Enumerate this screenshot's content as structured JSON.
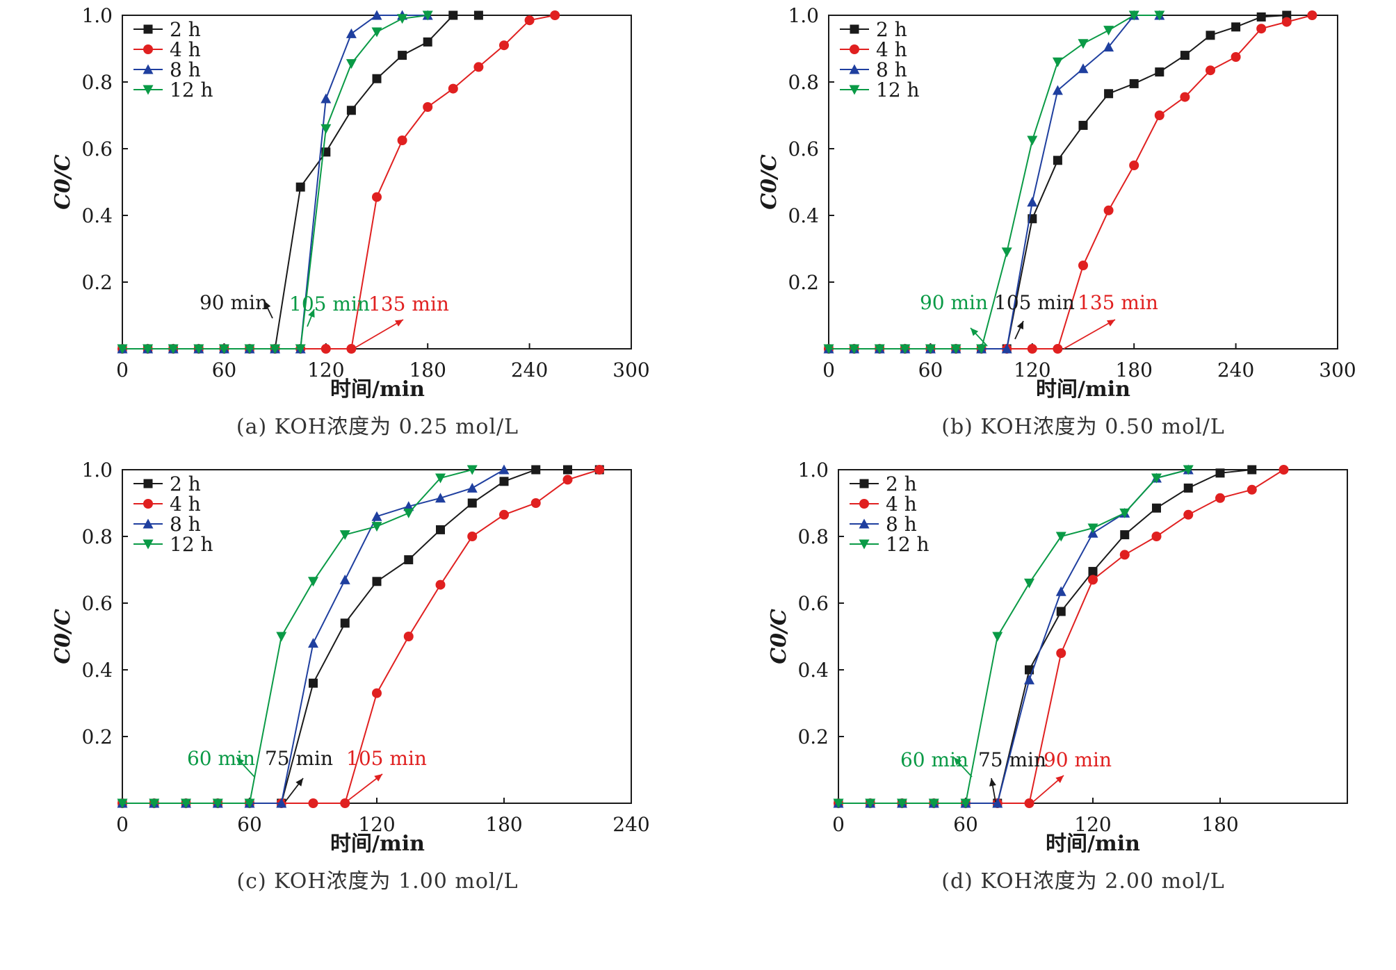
{
  "chart_data": [
    {
      "type": "line",
      "caption": "(a) KOH浓度为 0.25 mol/L",
      "xlabel": "时间/min",
      "ylabel": "C0/C",
      "xlim": [
        0,
        300
      ],
      "ylim": [
        0,
        1.0
      ],
      "xticks": [
        "0",
        "60",
        "120",
        "180",
        "240",
        "300"
      ],
      "yticks": [
        "0.2",
        "0.4",
        "0.6",
        "0.8",
        "1.0"
      ],
      "legend_position": "top-left",
      "series": [
        {
          "name": "2 h",
          "color": "#1a1a1a",
          "marker": "square",
          "x": [
            0,
            15,
            30,
            45,
            60,
            75,
            90,
            105,
            120,
            135,
            150,
            165,
            180,
            195,
            210
          ],
          "y": [
            0,
            0,
            0,
            0,
            0,
            0,
            0,
            0.485,
            0.59,
            0.715,
            0.81,
            0.88,
            0.92,
            1.0,
            1.0
          ]
        },
        {
          "name": "4 h",
          "color": "#e02020",
          "marker": "circle",
          "x": [
            0,
            15,
            30,
            45,
            60,
            75,
            90,
            105,
            120,
            135,
            150,
            165,
            180,
            195,
            210,
            225,
            240,
            255
          ],
          "y": [
            0,
            0,
            0,
            0,
            0,
            0,
            0,
            0,
            0,
            0,
            0.455,
            0.625,
            0.725,
            0.78,
            0.845,
            0.91,
            0.985,
            1.0
          ]
        },
        {
          "name": "8 h",
          "color": "#1f3f9f",
          "marker": "triangle-up",
          "x": [
            0,
            15,
            30,
            45,
            60,
            75,
            90,
            105,
            120,
            135,
            150,
            165,
            180
          ],
          "y": [
            0,
            0,
            0,
            0,
            0,
            0,
            0,
            0,
            0.75,
            0.945,
            1.0,
            1.0,
            1.0
          ]
        },
        {
          "name": "12 h",
          "color": "#0a9a46",
          "marker": "triangle-down",
          "x": [
            0,
            15,
            30,
            45,
            60,
            75,
            90,
            105,
            120,
            135,
            150,
            165,
            180
          ],
          "y": [
            0,
            0,
            0,
            0,
            0,
            0,
            0,
            0,
            0.66,
            0.855,
            0.95,
            0.99,
            1.0
          ]
        }
      ],
      "annotations": [
        {
          "text": "90 min",
          "color": "#1a1a1a",
          "x": 90
        },
        {
          "text": "105 min",
          "color": "#0a9a46",
          "x": 105
        },
        {
          "text": "135 min",
          "color": "#e02020",
          "x": 135
        }
      ]
    },
    {
      "type": "line",
      "caption": "(b) KOH浓度为 0.50 mol/L",
      "xlabel": "时间/min",
      "ylabel": "C0/C",
      "xlim": [
        0,
        300
      ],
      "ylim": [
        0,
        1.0
      ],
      "xticks": [
        "0",
        "60",
        "120",
        "180",
        "240",
        "300"
      ],
      "yticks": [
        "0.2",
        "0.4",
        "0.6",
        "0.8",
        "1.0"
      ],
      "legend_position": "top-left",
      "series": [
        {
          "name": "2 h",
          "color": "#1a1a1a",
          "marker": "square",
          "x": [
            0,
            15,
            30,
            45,
            60,
            75,
            90,
            105,
            120,
            135,
            150,
            165,
            180,
            195,
            210,
            225,
            240,
            255,
            270
          ],
          "y": [
            0,
            0,
            0,
            0,
            0,
            0,
            0,
            0,
            0.39,
            0.565,
            0.67,
            0.765,
            0.795,
            0.83,
            0.88,
            0.94,
            0.965,
            0.995,
            1.0
          ]
        },
        {
          "name": "4 h",
          "color": "#e02020",
          "marker": "circle",
          "x": [
            0,
            15,
            30,
            45,
            60,
            75,
            90,
            105,
            120,
            135,
            150,
            165,
            180,
            195,
            210,
            225,
            240,
            255,
            270,
            285
          ],
          "y": [
            0,
            0,
            0,
            0,
            0,
            0,
            0,
            0,
            0,
            0,
            0.25,
            0.415,
            0.55,
            0.7,
            0.755,
            0.835,
            0.875,
            0.96,
            0.98,
            1.0
          ]
        },
        {
          "name": "8 h",
          "color": "#1f3f9f",
          "marker": "triangle-up",
          "x": [
            0,
            15,
            30,
            45,
            60,
            75,
            90,
            105,
            120,
            135,
            150,
            165,
            180,
            195
          ],
          "y": [
            0,
            0,
            0,
            0,
            0,
            0,
            0,
            0,
            0.44,
            0.775,
            0.84,
            0.905,
            1.0,
            1.0
          ]
        },
        {
          "name": "12 h",
          "color": "#0a9a46",
          "marker": "triangle-down",
          "x": [
            0,
            15,
            30,
            45,
            60,
            75,
            90,
            105,
            120,
            135,
            150,
            165,
            180,
            195
          ],
          "y": [
            0,
            0,
            0,
            0,
            0,
            0,
            0,
            0.29,
            0.625,
            0.86,
            0.915,
            0.955,
            1.0,
            1.0
          ]
        }
      ],
      "annotations": [
        {
          "text": "90 min",
          "color": "#0a9a46",
          "x": 90
        },
        {
          "text": "105 min",
          "color": "#1a1a1a",
          "x": 105
        },
        {
          "text": "135 min",
          "color": "#e02020",
          "x": 135
        }
      ]
    },
    {
      "type": "line",
      "caption": "(c) KOH浓度为 1.00 mol/L",
      "xlabel": "时间/min",
      "ylabel": "C0/C",
      "xlim": [
        0,
        240
      ],
      "ylim": [
        0,
        1.0
      ],
      "xticks": [
        "0",
        "60",
        "120",
        "180",
        "240"
      ],
      "yticks": [
        "0.2",
        "0.4",
        "0.6",
        "0.8",
        "1.0"
      ],
      "legend_position": "top-left",
      "series": [
        {
          "name": "2 h",
          "color": "#1a1a1a",
          "marker": "square",
          "x": [
            0,
            15,
            30,
            45,
            60,
            75,
            90,
            105,
            120,
            135,
            150,
            165,
            180,
            195,
            210,
            225
          ],
          "y": [
            0,
            0,
            0,
            0,
            0,
            0,
            0.36,
            0.54,
            0.665,
            0.73,
            0.82,
            0.9,
            0.965,
            1.0,
            1.0,
            1.0
          ]
        },
        {
          "name": "4 h",
          "color": "#e02020",
          "marker": "circle",
          "x": [
            0,
            15,
            30,
            45,
            60,
            75,
            90,
            105,
            120,
            135,
            150,
            165,
            180,
            195,
            210,
            225
          ],
          "y": [
            0,
            0,
            0,
            0,
            0,
            0,
            0,
            0,
            0.33,
            0.5,
            0.655,
            0.8,
            0.865,
            0.9,
            0.97,
            1.0
          ]
        },
        {
          "name": "8 h",
          "color": "#1f3f9f",
          "marker": "triangle-up",
          "x": [
            0,
            15,
            30,
            45,
            60,
            75,
            90,
            105,
            120,
            135,
            150,
            165,
            180
          ],
          "y": [
            0,
            0,
            0,
            0,
            0,
            0,
            0.48,
            0.67,
            0.86,
            0.89,
            0.915,
            0.945,
            1.0
          ]
        },
        {
          "name": "12 h",
          "color": "#0a9a46",
          "marker": "triangle-down",
          "x": [
            0,
            15,
            30,
            45,
            60,
            75,
            90,
            105,
            120,
            135,
            150,
            165
          ],
          "y": [
            0,
            0,
            0,
            0,
            0,
            0.5,
            0.665,
            0.805,
            0.83,
            0.87,
            0.975,
            1.0
          ]
        }
      ],
      "annotations": [
        {
          "text": "60 min",
          "color": "#0a9a46",
          "x": 60
        },
        {
          "text": "75 min",
          "color": "#1a1a1a",
          "x": 75
        },
        {
          "text": "105 min",
          "color": "#e02020",
          "x": 105
        }
      ]
    },
    {
      "type": "line",
      "caption": "(d) KOH浓度为 2.00 mol/L",
      "xlabel": "时间/min",
      "ylabel": "C0/C",
      "xlim": [
        0,
        240
      ],
      "ylim": [
        0,
        1.0
      ],
      "xticks": [
        "0",
        "60",
        "120",
        "180"
      ],
      "yticks": [
        "0.2",
        "0.4",
        "0.6",
        "0.8",
        "1.0"
      ],
      "legend_position": "top-left",
      "series": [
        {
          "name": "2 h",
          "color": "#1a1a1a",
          "marker": "square",
          "x": [
            0,
            15,
            30,
            45,
            60,
            75,
            90,
            105,
            120,
            135,
            150,
            165,
            180,
            195
          ],
          "y": [
            0,
            0,
            0,
            0,
            0,
            0,
            0.4,
            0.575,
            0.695,
            0.805,
            0.885,
            0.945,
            0.99,
            1.0
          ]
        },
        {
          "name": "4 h",
          "color": "#e02020",
          "marker": "circle",
          "x": [
            0,
            15,
            30,
            45,
            60,
            75,
            90,
            105,
            120,
            135,
            150,
            165,
            180,
            195,
            210
          ],
          "y": [
            0,
            0,
            0,
            0,
            0,
            0,
            0,
            0.45,
            0.67,
            0.745,
            0.8,
            0.865,
            0.915,
            0.94,
            1.0
          ]
        },
        {
          "name": "8 h",
          "color": "#1f3f9f",
          "marker": "triangle-up",
          "x": [
            0,
            15,
            30,
            45,
            60,
            75,
            90,
            105,
            120,
            135,
            150,
            165
          ],
          "y": [
            0,
            0,
            0,
            0,
            0,
            0,
            0.37,
            0.635,
            0.81,
            0.87,
            0.975,
            1.0
          ]
        },
        {
          "name": "12 h",
          "color": "#0a9a46",
          "marker": "triangle-down",
          "x": [
            0,
            15,
            30,
            45,
            60,
            75,
            90,
            105,
            120,
            135,
            150,
            165
          ],
          "y": [
            0,
            0,
            0,
            0,
            0,
            0.5,
            0.66,
            0.8,
            0.825,
            0.87,
            0.975,
            1.0
          ]
        }
      ],
      "annotations": [
        {
          "text": "60 min",
          "color": "#0a9a46",
          "x": 60
        },
        {
          "text": "75 min",
          "color": "#1a1a1a",
          "x": 75
        },
        {
          "text": "90 min",
          "color": "#e02020",
          "x": 90
        }
      ]
    }
  ]
}
